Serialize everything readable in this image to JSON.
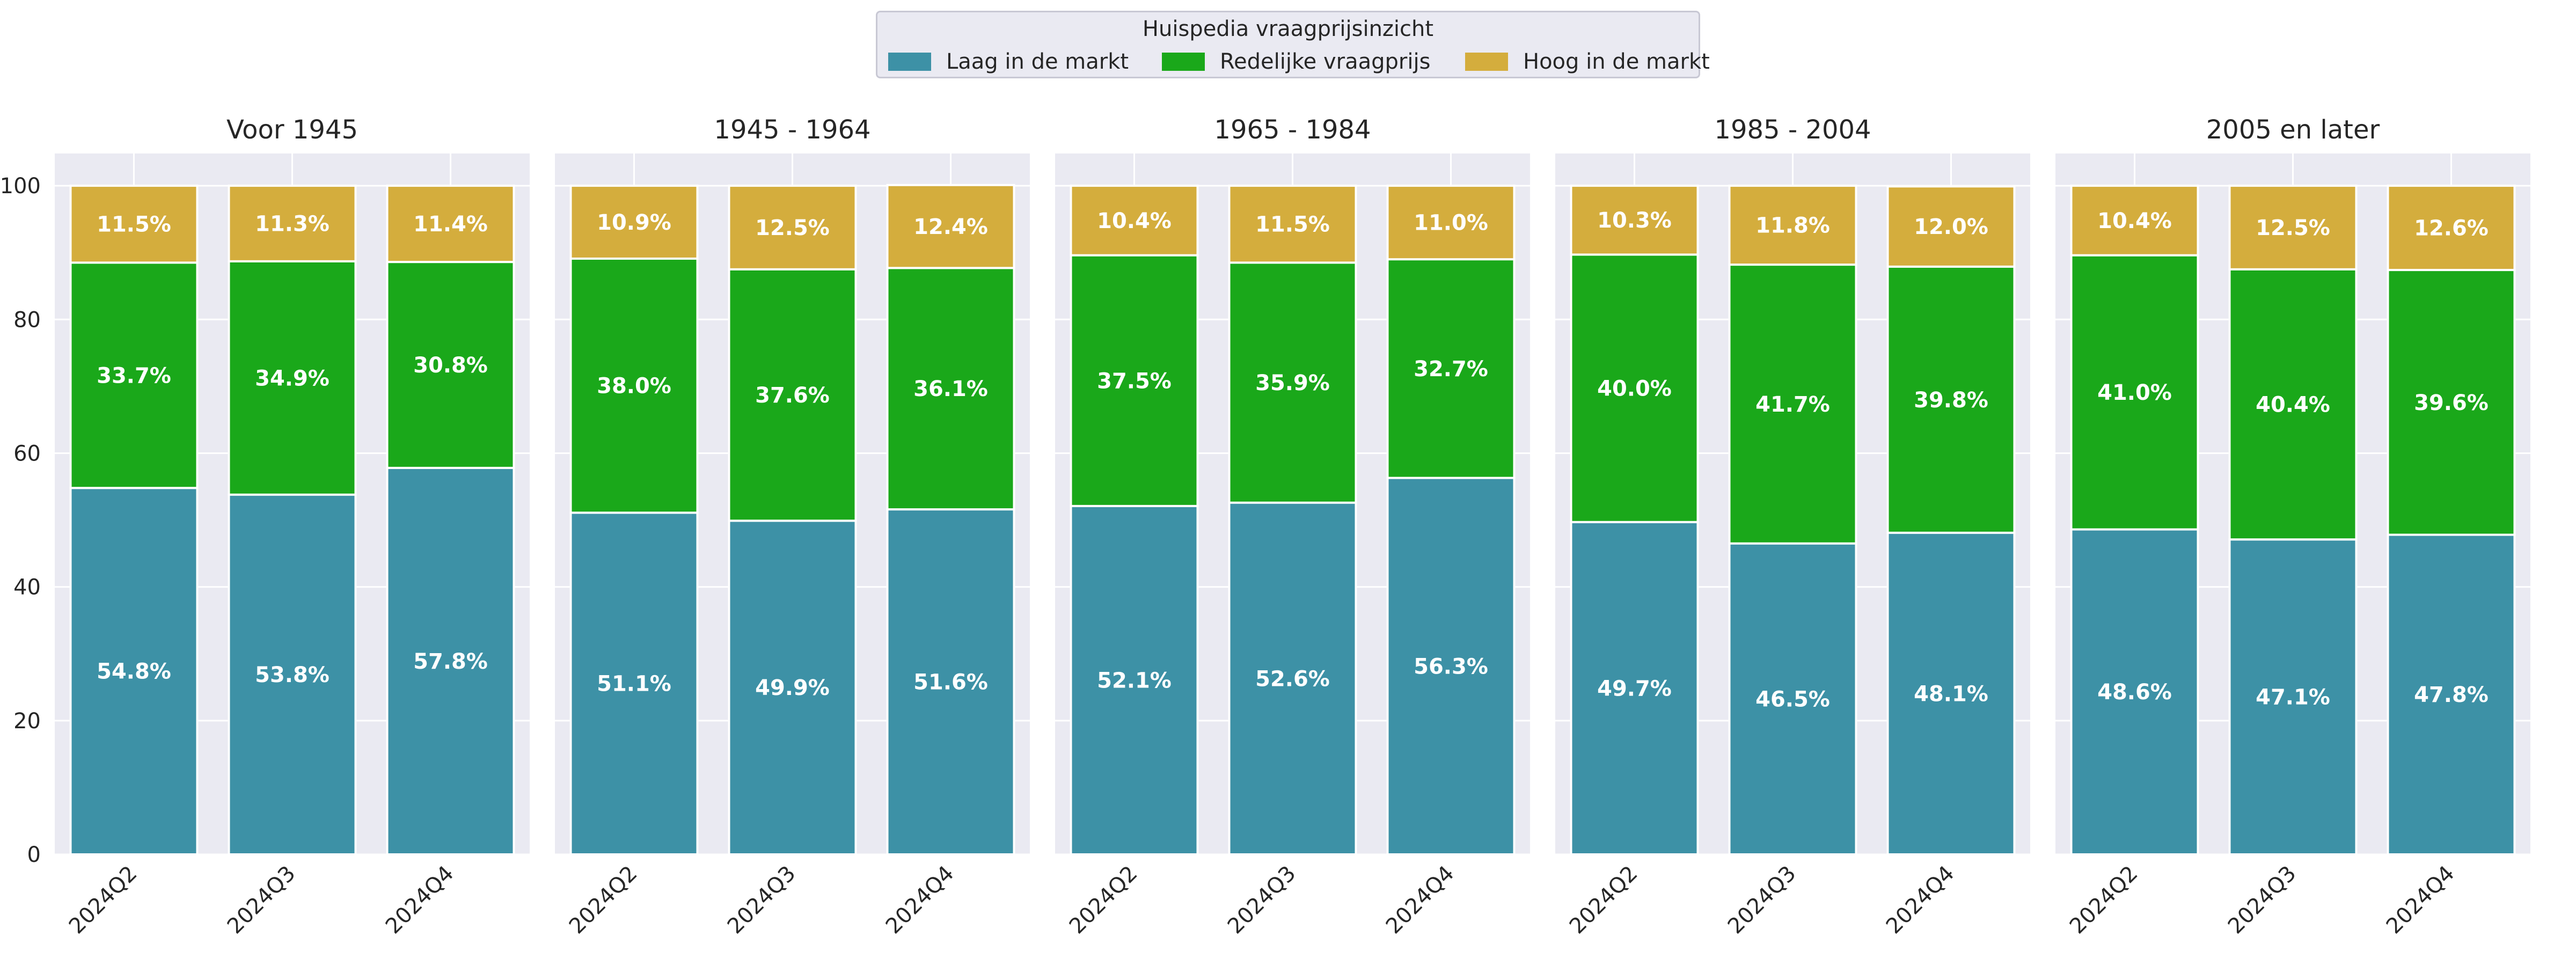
{
  "legend": {
    "title": "Huispedia vraagprijsinzicht",
    "items": [
      {
        "label": "Laag in de markt",
        "color": "#3d91a6"
      },
      {
        "label": "Redelijke vraagprijs",
        "color": "#1aa81a"
      },
      {
        "label": "Hoog in de markt",
        "color": "#d4ad3d"
      }
    ]
  },
  "chart_data": {
    "type": "bar",
    "stacked": true,
    "ylim": [
      0,
      100
    ],
    "yticks": [
      0,
      20,
      40,
      60,
      80,
      100
    ],
    "grid": true,
    "legend_position": "top-center",
    "categories": [
      "2024Q2",
      "2024Q3",
      "2024Q4"
    ],
    "series_names": [
      "Laag in de markt",
      "Redelijke vraagprijs",
      "Hoog in de markt"
    ],
    "series_colors": [
      "#3d91a6",
      "#1aa81a",
      "#d4ad3d"
    ],
    "panels": [
      {
        "title": "Voor 1945",
        "values": [
          [
            54.8,
            53.8,
            57.8
          ],
          [
            33.7,
            34.9,
            30.8
          ],
          [
            11.5,
            11.3,
            11.4
          ]
        ],
        "labels": [
          [
            "54.8%",
            "53.8%",
            "57.8%"
          ],
          [
            "33.7%",
            "34.9%",
            "30.8%"
          ],
          [
            "11.5%",
            "11.3%",
            "11.4%"
          ]
        ]
      },
      {
        "title": "1945 - 1964",
        "values": [
          [
            51.1,
            49.9,
            51.6
          ],
          [
            38.0,
            37.6,
            36.1
          ],
          [
            10.9,
            12.5,
            12.4
          ]
        ],
        "labels": [
          [
            "51.1%",
            "49.9%",
            "51.6%"
          ],
          [
            "38.0%",
            "37.6%",
            "36.1%"
          ],
          [
            "10.9%",
            "12.5%",
            "12.4%"
          ]
        ]
      },
      {
        "title": "1965 - 1984",
        "values": [
          [
            52.1,
            52.6,
            56.3
          ],
          [
            37.5,
            35.9,
            32.7
          ],
          [
            10.4,
            11.5,
            11.0
          ]
        ],
        "labels": [
          [
            "52.1%",
            "52.6%",
            "56.3%"
          ],
          [
            "37.5%",
            "35.9%",
            "32.7%"
          ],
          [
            "10.4%",
            "11.5%",
            "11.0%"
          ]
        ]
      },
      {
        "title": "1985 - 2004",
        "values": [
          [
            49.7,
            46.5,
            48.1
          ],
          [
            40.0,
            41.7,
            39.8
          ],
          [
            10.3,
            11.8,
            12.0
          ]
        ],
        "labels": [
          [
            "49.7%",
            "46.5%",
            "48.1%"
          ],
          [
            "40.0%",
            "41.7%",
            "39.8%"
          ],
          [
            "10.3%",
            "11.8%",
            "12.0%"
          ]
        ]
      },
      {
        "title": "2005 en later",
        "values": [
          [
            48.6,
            47.1,
            47.8
          ],
          [
            41.0,
            40.4,
            39.6
          ],
          [
            10.4,
            12.5,
            12.6
          ]
        ],
        "labels": [
          [
            "48.6%",
            "47.1%",
            "47.8%"
          ],
          [
            "41.0%",
            "40.4%",
            "39.6%"
          ],
          [
            "10.4%",
            "12.5%",
            "12.6%"
          ]
        ]
      }
    ]
  }
}
